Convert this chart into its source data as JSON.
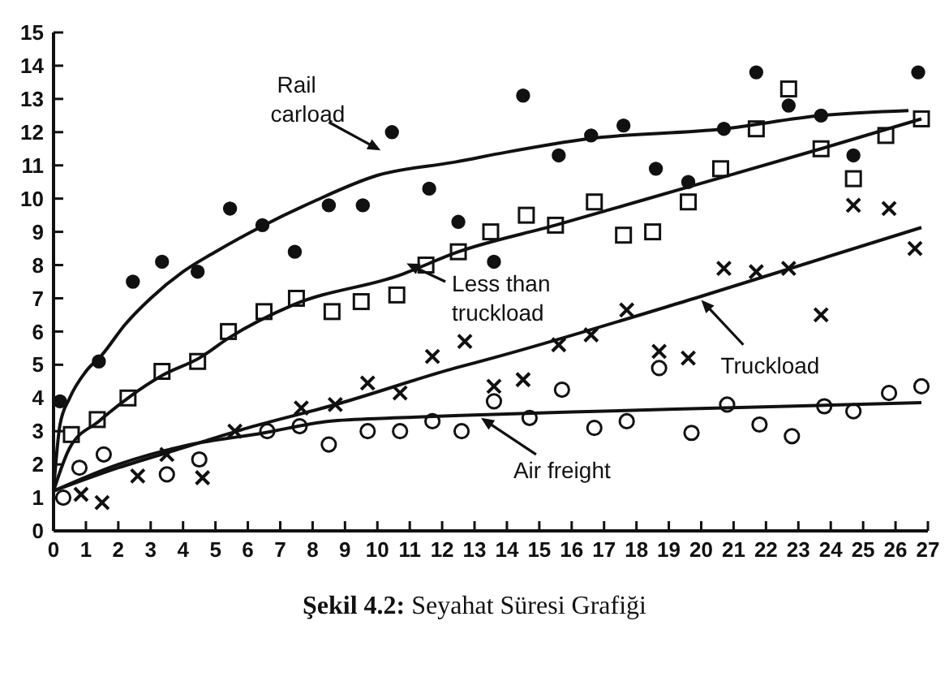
{
  "chart_data": {
    "type": "scatter",
    "xlim": [
      0,
      27
    ],
    "ylim": [
      0,
      15
    ],
    "xticks": [
      0,
      1,
      2,
      3,
      4,
      5,
      6,
      7,
      8,
      9,
      10,
      11,
      12,
      13,
      14,
      15,
      16,
      17,
      18,
      19,
      20,
      21,
      22,
      23,
      24,
      25,
      26,
      27
    ],
    "yticks": [
      0,
      1,
      2,
      3,
      4,
      5,
      6,
      7,
      8,
      9,
      10,
      11,
      12,
      13,
      14,
      15
    ],
    "grid": false,
    "legend": "bottom right",
    "annotations": [
      "Şekil 4.2: Seyahat Süresi Grafiği"
    ],
    "series": [
      {
        "marker": "circle",
        "color": "#111111",
        "x": [
          0.2,
          1.4,
          2.45,
          3.35,
          4.45,
          5.45,
          6.45,
          7.45,
          8.5,
          9.55,
          10.45,
          11.6,
          12.5,
          13.6,
          14.5,
          15.6,
          16.6,
          17.6,
          18.6,
          19.6,
          20.7,
          21.7,
          22.7,
          23.7,
          24.7,
          26.7
        ],
        "values": [
          3.9,
          5.1,
          7.5,
          8.1,
          7.8,
          9.7,
          9.2,
          8.4,
          9.8,
          9.8,
          12,
          10.3,
          9.3,
          8.1,
          13.1,
          11.3,
          11.9,
          12.2,
          10.9,
          10.5,
          12.1,
          13.8,
          12.8,
          12.5,
          11.3,
          13.8
        ]
      },
      {
        "marker": "square",
        "color": "#111111",
        "x": [
          0.55,
          1.35,
          2.3,
          3.35,
          4.45,
          5.4,
          6.5,
          7.5,
          8.6,
          9.5,
          10.6,
          11.5,
          12.5,
          13.5,
          14.6,
          15.5,
          16.7,
          17.6,
          18.5,
          19.6,
          20.6,
          21.7,
          22.7,
          23.7,
          24.7,
          25.7,
          26.8
        ],
        "values": [
          2.9,
          3.35,
          4,
          4.8,
          5.1,
          6,
          6.6,
          7,
          6.6,
          6.9,
          7.1,
          8,
          8.4,
          9,
          9.5,
          9.2,
          9.9,
          8.9,
          9,
          9.9,
          10.9,
          12.1,
          13.3,
          11.5,
          10.6,
          11.9,
          12.4
        ]
      },
      {
        "marker": "cross",
        "color": "#111111",
        "x": [
          0.85,
          1.5,
          2.6,
          3.5,
          4.6,
          5.6,
          7.65,
          8.7,
          9.7,
          10.7,
          11.7,
          12.7,
          13.6,
          14.5,
          15.6,
          16.6,
          17.7,
          18.7,
          19.6,
          20.7,
          21.7,
          22.7,
          23.7,
          24.7,
          25.8,
          26.6
        ],
        "values": [
          1.1,
          0.85,
          1.65,
          2.3,
          1.6,
          3,
          3.7,
          3.8,
          4.45,
          4.15,
          5.25,
          5.7,
          4.35,
          4.55,
          5.6,
          5.9,
          6.65,
          5.4,
          5.2,
          7.9,
          7.8,
          7.9,
          6.5,
          9.8,
          9.7,
          8.5
        ]
      },
      {
        "marker": "circle",
        "color": "#111111",
        "x": [
          0.3,
          0.8,
          1.55,
          3.5,
          4.5,
          6.6,
          7.6,
          8.5,
          9.7,
          10.7,
          11.7,
          12.6,
          13.6,
          14.7,
          15.7,
          16.7,
          17.7,
          18.7,
          19.7,
          20.8,
          21.8,
          22.8,
          23.8,
          24.7,
          25.8,
          26.8
        ],
        "values": [
          1,
          1.9,
          2.3,
          1.7,
          2.15,
          3,
          3.15,
          2.6,
          3,
          3,
          3.3,
          3,
          3.9,
          3.4,
          4.25,
          3.1,
          3.3,
          4.9,
          2.95,
          3.8,
          3.2,
          2.85,
          3.75,
          3.6,
          4.15,
          4.35
        ]
      },
      {
        "type": "line",
        "name": "Rail carload",
        "marker": "none",
        "color": "#111111",
        "x": [
          0,
          0.2,
          0.5,
          1,
          1.5,
          2.2,
          3,
          4,
          5,
          6.5,
          8,
          10,
          12.4,
          14,
          16.5,
          20.7,
          23.7,
          26.4
        ],
        "values": [
          1.2,
          3.2,
          4,
          4.8,
          5.3,
          6.2,
          7,
          7.8,
          8.4,
          9.2,
          9.9,
          10.7,
          11.1,
          11.4,
          11.8,
          12.1,
          12.5,
          12.65
        ]
      },
      {
        "type": "line",
        "name": "Less than truckload",
        "marker": "none",
        "color": "#111111",
        "x": [
          0,
          0.5,
          1.4,
          2.3,
          3.4,
          4.5,
          5.4,
          7.4,
          10.7,
          12.5,
          15.5,
          19.6,
          23.7,
          26.8
        ],
        "values": [
          1.2,
          2.5,
          3.3,
          4,
          4.7,
          5.2,
          5.8,
          6.8,
          7.7,
          8.4,
          9.2,
          10.35,
          11.5,
          12.4
        ]
      },
      {
        "type": "line",
        "name": "Truckload",
        "marker": "none",
        "color": "#111111",
        "x": [
          0,
          2,
          4,
          6,
          8.7,
          12.4,
          13.55,
          19.8,
          26.8
        ],
        "values": [
          1.2,
          1.9,
          2.5,
          3.1,
          3.8,
          4.9,
          5.2,
          7,
          9.13
        ]
      },
      {
        "type": "line",
        "name": "Air freight",
        "marker": "none",
        "color": "#111111",
        "x": [
          0,
          2,
          4,
          6.5,
          8.5,
          10.5,
          12.4,
          16,
          20.7,
          26.8
        ],
        "values": [
          1.2,
          2,
          2.55,
          2.95,
          3.3,
          3.4,
          3.47,
          3.58,
          3.7,
          3.86
        ]
      }
    ]
  }
}
